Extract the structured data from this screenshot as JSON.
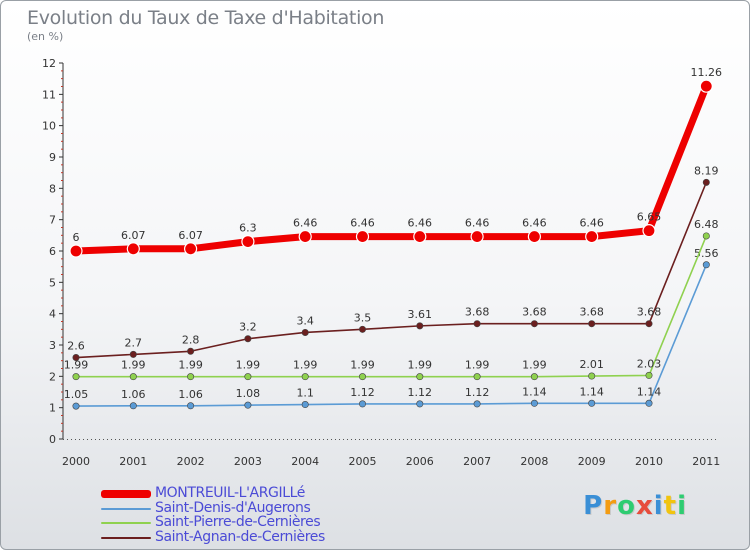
{
  "title": "Evolution du Taux de Taxe d'Habitation",
  "unit_label": "(en %)",
  "logo": {
    "text": "Proxiti",
    "letters": [
      "P",
      "r",
      "o",
      "x",
      "i",
      "t",
      "i"
    ],
    "colors": [
      "#3a8fd6",
      "#f39c12",
      "#2ecc71",
      "#e74c3c",
      "#3a8fd6",
      "#f1c40f",
      "#2ecc71"
    ]
  },
  "chart_data": {
    "type": "line",
    "title": "Evolution du Taux de Taxe d'Habitation",
    "ylabel": "(en %)",
    "xlabel": "",
    "x": [
      "2000",
      "2001",
      "2002",
      "2003",
      "2004",
      "2005",
      "2006",
      "2007",
      "2008",
      "2009",
      "2010",
      "2011"
    ],
    "ylim": [
      0,
      12
    ],
    "yticks": [
      "0",
      "1",
      "2",
      "3",
      "4",
      "5",
      "6",
      "7",
      "8",
      "9",
      "10",
      "11",
      "12"
    ],
    "grid": false,
    "legend_position": "bottom-left",
    "series": [
      {
        "name": "MONTREUIL-L'ARGILLé",
        "color": "#ee0000",
        "values": [
          6,
          6.07,
          6.07,
          6.3,
          6.46,
          6.46,
          6.46,
          6.46,
          6.46,
          6.46,
          6.65,
          11.26
        ],
        "labels": [
          "6",
          "6.07",
          "6.07",
          "6.3",
          "6.46",
          "6.46",
          "6.46",
          "6.46",
          "6.46",
          "6.46",
          "6.65",
          "11.26"
        ]
      },
      {
        "name": "Saint-Denis-d'Augerons",
        "color": "#5b9bd5",
        "values": [
          1.05,
          1.06,
          1.06,
          1.08,
          1.1,
          1.12,
          1.12,
          1.12,
          1.14,
          1.14,
          1.14,
          5.56
        ],
        "labels": [
          "1.05",
          "1.06",
          "1.06",
          "1.08",
          "1.1",
          "1.12",
          "1.12",
          "1.12",
          "1.14",
          "1.14",
          "1.14",
          "5.56"
        ]
      },
      {
        "name": "Saint-Pierre-de-Cernières",
        "color": "#8fd14f",
        "values": [
          1.99,
          1.99,
          1.99,
          1.99,
          1.99,
          1.99,
          1.99,
          1.99,
          1.99,
          2.01,
          2.03,
          6.48
        ],
        "labels": [
          "1.99",
          "1.99",
          "1.99",
          "1.99",
          "1.99",
          "1.99",
          "1.99",
          "1.99",
          "1.99",
          "2.01",
          "2.03",
          "6.48"
        ]
      },
      {
        "name": "Saint-Agnan-de-Cernières",
        "color": "#6b1f1f",
        "values": [
          2.6,
          2.7,
          2.8,
          3.2,
          3.4,
          3.5,
          3.61,
          3.68,
          3.68,
          3.68,
          3.68,
          8.19
        ],
        "labels": [
          "2.6",
          "2.7",
          "2.8",
          "3.2",
          "3.4",
          "3.5",
          "3.61",
          "3.68",
          "3.68",
          "3.68",
          "3.68",
          "8.19"
        ]
      }
    ]
  }
}
